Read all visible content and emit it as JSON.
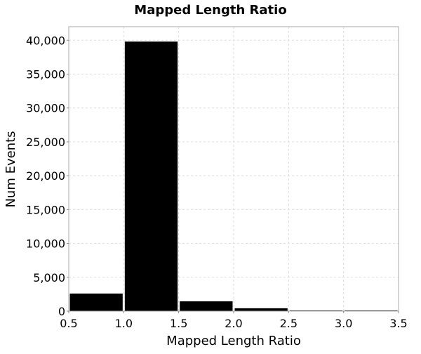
{
  "chart_data": {
    "type": "bar",
    "title": "Mapped Length Ratio",
    "xlabel": "Mapped Length Ratio",
    "ylabel": "Num Events",
    "xlim": [
      0.5,
      3.5
    ],
    "ylim": [
      0,
      42000
    ],
    "grid": true,
    "xticks": [
      "0.5",
      "1.0",
      "1.5",
      "2.0",
      "2.5",
      "3.0",
      "3.5"
    ],
    "yticks": [
      "0",
      "5,000",
      "10,000",
      "15,000",
      "20,000",
      "25,000",
      "30,000",
      "35,000",
      "40,000"
    ],
    "bins": [
      {
        "x0": 0.5,
        "x1": 1.0,
        "value": 2600
      },
      {
        "x0": 1.0,
        "x1": 1.5,
        "value": 39800
      },
      {
        "x0": 1.5,
        "x1": 2.0,
        "value": 1450
      },
      {
        "x0": 2.0,
        "x1": 2.5,
        "value": 430
      },
      {
        "x0": 2.5,
        "x1": 3.0,
        "value": 90
      },
      {
        "x0": 3.0,
        "x1": 3.5,
        "value": 20
      }
    ],
    "bar_color": "#000000",
    "plot_background": "#ffffff",
    "frame_color": "#aaaaaa"
  }
}
